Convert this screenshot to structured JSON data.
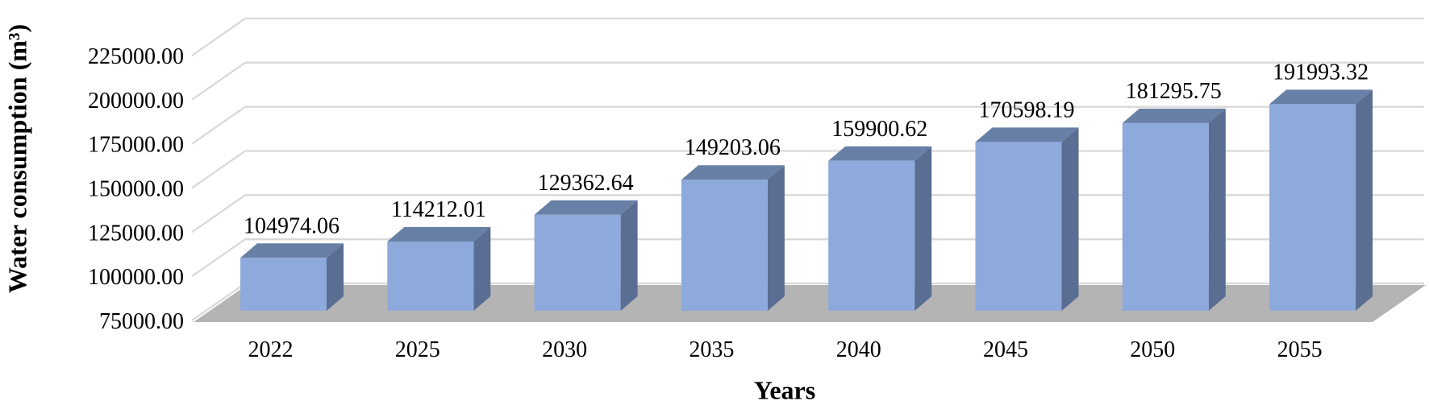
{
  "chart_data": {
    "type": "bar",
    "style": "3d-column",
    "title": "",
    "xlabel": "Years",
    "ylabel": "Water consumption (m³)",
    "categories": [
      "2022",
      "2025",
      "2030",
      "2035",
      "2040",
      "2045",
      "2050",
      "2055"
    ],
    "values": [
      104974.06,
      114212.01,
      129362.64,
      149203.06,
      159900.62,
      170598.19,
      181295.75,
      191993.32
    ],
    "data_labels": [
      "104974.06",
      "114212.01",
      "129362.64",
      "149203.06",
      "159900.62",
      "170598.19",
      "181295.75",
      "191993.32"
    ],
    "y_ticks": [
      75000,
      100000,
      125000,
      150000,
      175000,
      200000,
      225000
    ],
    "y_tick_labels": [
      "75000.00",
      "100000.00",
      "125000.00",
      "150000.00",
      "175000.00",
      "200000.00",
      "225000.00"
    ],
    "ylim": [
      75000,
      225000
    ],
    "grid": true,
    "legend": false,
    "colors": {
      "bar_front": "#8EA9DB",
      "bar_top": "#6880A6",
      "bar_side": "#5A6D92",
      "floor": "#B4B4B4",
      "gridline": "#D9D9D9",
      "text": "#000000",
      "background": "#FFFFFF"
    }
  }
}
